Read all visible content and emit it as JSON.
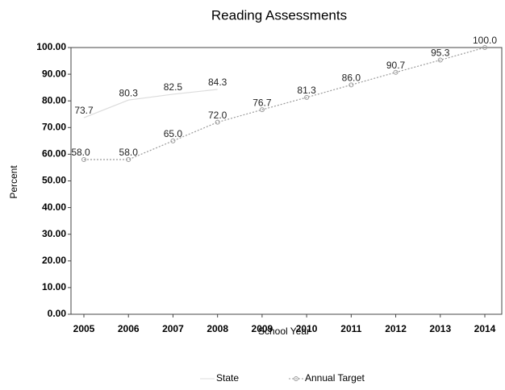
{
  "chart_data": {
    "type": "line",
    "title": "Reading Assessments",
    "x_label": "School Year",
    "y_label": "Percent",
    "categories": [
      "2005",
      "2006",
      "2007",
      "2008",
      "2009",
      "2010",
      "2011",
      "2012",
      "2013",
      "2014"
    ],
    "series": [
      {
        "name": "State",
        "color": "#dcdcdc",
        "values": [
          73.7,
          80.3,
          82.5,
          84.3,
          null,
          null,
          null,
          null,
          null,
          null
        ]
      },
      {
        "name": "Annual Target",
        "color": "#9a9a9a",
        "values": [
          58,
          58,
          65,
          72,
          76.7,
          81.3,
          86,
          90.7,
          95.3,
          100
        ],
        "value_labels": [
          "58.0",
          "58.0",
          "65.0",
          "72.0",
          "76.7",
          "81.3",
          "86.0",
          "90.7",
          "95.3",
          "100.0"
        ]
      }
    ],
    "ylim": [
      0,
      100
    ],
    "yticks": [
      {
        "value": 0,
        "label": "0.00"
      },
      {
        "value": 10,
        "label": "10.00"
      },
      {
        "value": 20,
        "label": "20.00"
      },
      {
        "value": 30,
        "label": "30.00"
      },
      {
        "value": 40,
        "label": "40.00"
      },
      {
        "value": 50,
        "label": "50.00"
      },
      {
        "value": 60,
        "label": "60.00"
      },
      {
        "value": 70,
        "label": "70.00"
      },
      {
        "value": 80,
        "label": "80.00"
      },
      {
        "value": 90,
        "label": "90.00"
      },
      {
        "value": 100,
        "label": "100.00"
      }
    ],
    "grid": false,
    "legend": "bottom"
  }
}
